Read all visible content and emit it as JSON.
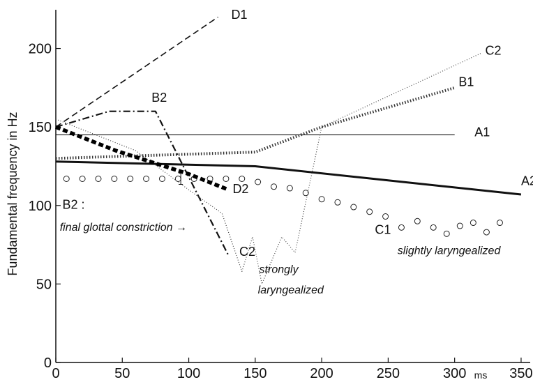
{
  "chart_data": {
    "type": "line",
    "title": "",
    "xlabel": "",
    "x_unit": "ms",
    "ylabel": "Fundamental frequency in Hz",
    "xlim": [
      0,
      360
    ],
    "ylim": [
      0,
      230
    ],
    "xticks": [
      0,
      50,
      100,
      150,
      200,
      250,
      300,
      350
    ],
    "yticks": [
      0,
      50,
      100,
      150,
      200
    ],
    "grid": false,
    "series": [
      {
        "name": "A1",
        "style": "thin-solid",
        "points": [
          [
            0,
            145
          ],
          [
            300,
            145
          ]
        ]
      },
      {
        "name": "A2",
        "style": "thick-solid",
        "points": [
          [
            0,
            128
          ],
          [
            150,
            125
          ],
          [
            350,
            107
          ]
        ]
      },
      {
        "name": "B1",
        "style": "thick-dotted",
        "points": [
          [
            0,
            130
          ],
          [
            150,
            134
          ],
          [
            200,
            150
          ],
          [
            300,
            175
          ]
        ]
      },
      {
        "name": "B2",
        "style": "dash-dot",
        "points": [
          [
            0,
            150
          ],
          [
            40,
            160
          ],
          [
            75,
            160
          ],
          [
            130,
            68
          ]
        ]
      },
      {
        "name": "C1",
        "style": "circles",
        "points": [
          [
            8,
            117
          ],
          [
            20,
            117
          ],
          [
            32,
            117
          ],
          [
            44,
            117
          ],
          [
            56,
            117
          ],
          [
            68,
            117
          ],
          [
            80,
            117
          ],
          [
            92,
            117
          ],
          [
            104,
            117
          ],
          [
            116,
            117
          ],
          [
            128,
            117
          ],
          [
            140,
            117
          ],
          [
            152,
            115
          ],
          [
            164,
            112
          ],
          [
            176,
            111
          ],
          [
            188,
            108
          ],
          [
            200,
            104
          ],
          [
            212,
            102
          ],
          [
            224,
            99
          ],
          [
            236,
            96
          ],
          [
            248,
            93
          ],
          [
            260,
            86
          ],
          [
            272,
            90
          ],
          [
            284,
            86
          ],
          [
            294,
            82
          ],
          [
            304,
            87
          ],
          [
            314,
            89
          ],
          [
            324,
            83
          ],
          [
            334,
            89
          ]
        ]
      },
      {
        "name": "C2",
        "style": "thin-dotted",
        "points": [
          [
            0,
            155
          ],
          [
            60,
            135
          ],
          [
            100,
            110
          ],
          [
            125,
            95
          ],
          [
            140,
            58
          ],
          [
            148,
            80
          ],
          [
            155,
            50
          ],
          [
            170,
            80
          ],
          [
            180,
            70
          ],
          [
            200,
            150
          ],
          [
            320,
            197
          ]
        ]
      },
      {
        "name": "D1",
        "style": "dashed",
        "points": [
          [
            0,
            150
          ],
          [
            122,
            220
          ]
        ]
      },
      {
        "name": "D2",
        "style": "thick-dashed",
        "points": [
          [
            0,
            150
          ],
          [
            45,
            135
          ],
          [
            100,
            120
          ],
          [
            130,
            110
          ]
        ]
      }
    ],
    "series_labels": [
      {
        "series": "D1",
        "text": "D1",
        "x": 132,
        "y": 219
      },
      {
        "series": "B2",
        "text": "B2",
        "x": 72,
        "y": 166
      },
      {
        "series": "C2",
        "text": "C2",
        "x": 323,
        "y": 196
      },
      {
        "series": "B1",
        "text": "B1",
        "x": 303,
        "y": 176
      },
      {
        "series": "A1",
        "text": "A1",
        "x": 315,
        "y": 144
      },
      {
        "series": "D2",
        "text": "D2",
        "x": 133,
        "y": 108
      },
      {
        "series": "A2",
        "text": "A2",
        "x": 350,
        "y": 113
      },
      {
        "series": "B2",
        "text": "B2 :",
        "x": 5,
        "y": 98
      },
      {
        "series": "C2",
        "text": "C2",
        "x": 138,
        "y": 68
      },
      {
        "series": "C1",
        "text": "C1",
        "x": 240,
        "y": 82
      }
    ],
    "annotations": [
      {
        "text": "final glottal constriction →",
        "x": 3,
        "y": 84
      },
      {
        "text": "strongly",
        "x": 153,
        "y": 57
      },
      {
        "text": "laryngealized",
        "x": 152,
        "y": 44
      },
      {
        "text": "slightly laryngealized",
        "x": 257,
        "y": 69
      }
    ],
    "marker_note": "small I-beam error marker near x=94, y=117"
  }
}
